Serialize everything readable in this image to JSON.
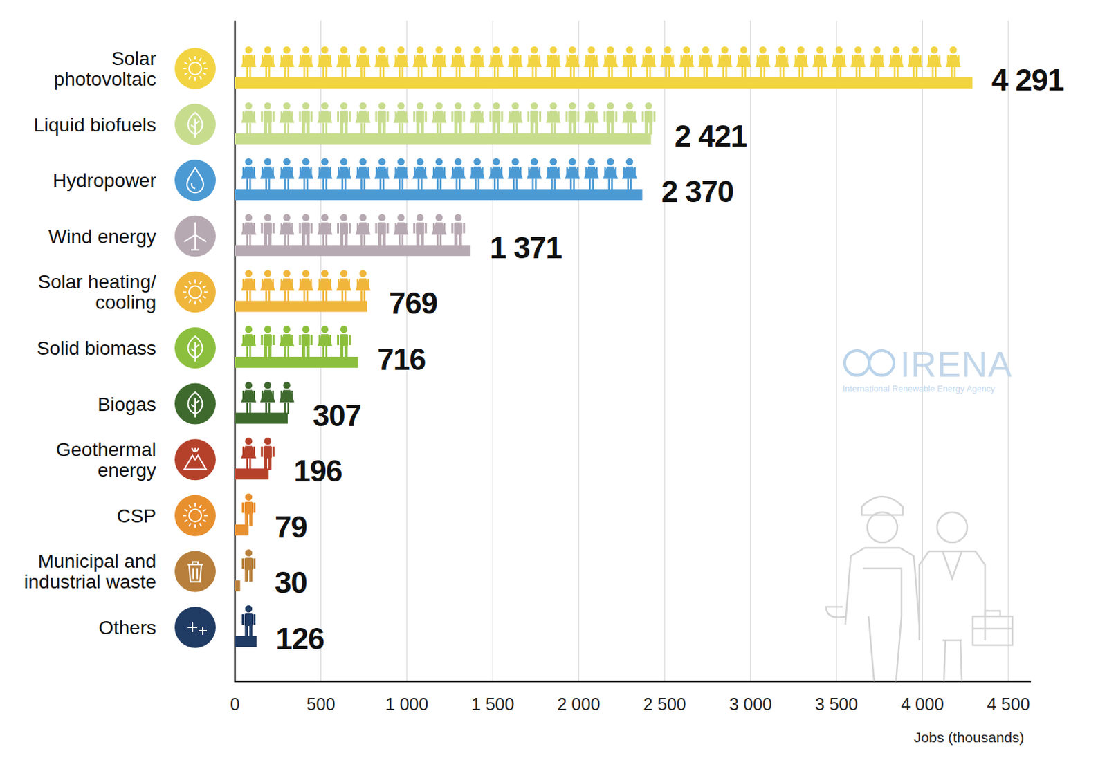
{
  "chart_data": {
    "type": "bar",
    "orientation": "horizontal",
    "categories": [
      "Solar photovoltaic",
      "Liquid biofuels",
      "Hydropower",
      "Wind energy",
      "Solar heating/ cooling",
      "Solid biomass",
      "Biogas",
      "Geothermal energy",
      "CSP",
      "Municipal and industrial waste",
      "Others"
    ],
    "values": [
      4291,
      2421,
      2370,
      1371,
      769,
      716,
      307,
      196,
      79,
      30,
      126
    ],
    "value_labels": [
      "4 291",
      "2 421",
      "2 370",
      "1 371",
      "769",
      "716",
      "307",
      "196",
      "79",
      "30",
      "126"
    ],
    "colors": [
      "#f2d443",
      "#c8dc8e",
      "#4b9ad4",
      "#b7a9b1",
      "#f0b63b",
      "#8dbf3e",
      "#3f6a2e",
      "#b5412b",
      "#e88f2e",
      "#b77f3b",
      "#203b64"
    ],
    "xlim": [
      0,
      4500
    ],
    "xticks": [
      0,
      500,
      {
        "value": 1000,
        "label": "1 000"
      },
      {
        "value": 1500,
        "label": "1 500"
      },
      {
        "value": 2000,
        "label": "2 000"
      },
      {
        "value": 2500,
        "label": "2 500"
      },
      {
        "value": 3000,
        "label": "3 000"
      },
      {
        "value": 3500,
        "label": "3 500"
      },
      {
        "value": 4000,
        "label": "4 000"
      },
      {
        "value": 4500,
        "label": "4 500"
      }
    ],
    "x_label": "Jobs (thousands)",
    "grid": true,
    "data_labels": true,
    "annotations": [
      "IRENA",
      "International Renewable Energy Agency"
    ]
  }
}
